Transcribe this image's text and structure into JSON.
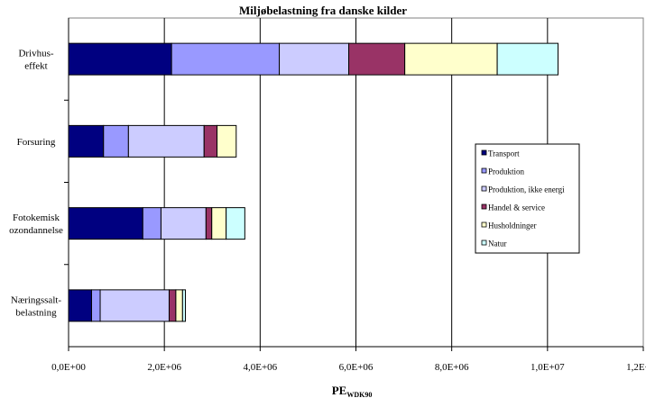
{
  "chart_data": {
    "type": "bar",
    "orientation": "horizontal",
    "stacked": true,
    "title": "Miljøbelastning fra danske kilder",
    "xlabel": "PE",
    "xlabel_subscript": "WDK90",
    "xlim": [
      0,
      12000000
    ],
    "xticks": [
      0,
      2000000,
      4000000,
      6000000,
      8000000,
      10000000,
      12000000
    ],
    "xtick_labels": [
      "0,0E+00",
      "2,0E+06",
      "4,0E+06",
      "6,0E+06",
      "8,0E+06",
      "1,0E+07",
      "1,2E+07"
    ],
    "grid": true,
    "legend_position": "right",
    "categories": [
      [
        "Drivhus-",
        "effekt"
      ],
      [
        "Forsuring"
      ],
      [
        "Fotokemisk",
        "ozondannelse"
      ],
      [
        "Næringssalt-",
        "belastning"
      ]
    ],
    "series": [
      {
        "name": "Transport",
        "color": "#000080",
        "values": [
          2150000,
          730000,
          1550000,
          480000
        ]
      },
      {
        "name": "Produktion",
        "color": "#9999ff",
        "values": [
          2250000,
          520000,
          380000,
          180000
        ]
      },
      {
        "name": "Produktion, ikke energi",
        "color": "#ccccff",
        "values": [
          1450000,
          1580000,
          940000,
          1440000
        ]
      },
      {
        "name": "Handel & service",
        "color": "#993366",
        "values": [
          1170000,
          270000,
          120000,
          140000
        ]
      },
      {
        "name": "Husholdninger",
        "color": "#ffffcc",
        "values": [
          1930000,
          400000,
          300000,
          140000
        ]
      },
      {
        "name": "Natur",
        "color": "#ccffff",
        "values": [
          1270000,
          0,
          390000,
          60000
        ]
      }
    ]
  }
}
